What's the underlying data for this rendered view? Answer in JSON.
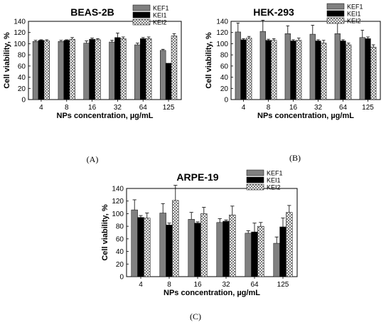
{
  "colors": {
    "KEF1": "#808080",
    "KEI1": "#000000",
    "KEI2": "crosshatch"
  },
  "chart_data": [
    {
      "type": "bar",
      "title": "BEAS-2B",
      "panel_label": "(A)",
      "xlabel": "NPs concentration, µg/mL",
      "ylabel": "Cell viability, %",
      "ylim": [
        0,
        140
      ],
      "yticks": [
        0,
        20,
        40,
        60,
        80,
        100,
        120,
        140
      ],
      "categories": [
        "4",
        "8",
        "16",
        "32",
        "64",
        "125"
      ],
      "legend_position": "top-right",
      "series": [
        {
          "name": "KEF1",
          "values": [
            104,
            104,
            101,
            103,
            98,
            88
          ],
          "errors": [
            2,
            2,
            4,
            3,
            3,
            2
          ]
        },
        {
          "name": "KEI1",
          "values": [
            106,
            106,
            108,
            111,
            109,
            65
          ],
          "errors": [
            1,
            1,
            2,
            8,
            2,
            0
          ]
        },
        {
          "name": "KEI2",
          "values": [
            105,
            108,
            107,
            109,
            109,
            114
          ],
          "errors": [
            2,
            3,
            2,
            3,
            3,
            4
          ]
        }
      ]
    },
    {
      "type": "bar",
      "title": "HEK-293",
      "panel_label": "(B)",
      "xlabel": "NPs concentration, µg/mL",
      "ylabel": "Cell viability, %",
      "ylim": [
        0,
        140
      ],
      "yticks": [
        0,
        20,
        40,
        60,
        80,
        100,
        120,
        140
      ],
      "categories": [
        "4",
        "8",
        "16",
        "32",
        "64",
        "125"
      ],
      "legend_position": "top-right",
      "series": [
        {
          "name": "KEF1",
          "values": [
            121,
            122,
            118,
            117,
            118,
            111
          ],
          "errors": [
            16,
            20,
            14,
            16,
            20,
            13
          ]
        },
        {
          "name": "KEI1",
          "values": [
            107,
            106,
            105,
            105,
            105,
            109
          ],
          "errors": [
            2,
            2,
            2,
            2,
            2,
            3
          ]
        },
        {
          "name": "KEI2",
          "values": [
            110,
            106,
            106,
            101,
            98,
            94
          ],
          "errors": [
            3,
            3,
            4,
            5,
            3,
            4
          ]
        }
      ]
    },
    {
      "type": "bar",
      "title": "ARPE-19",
      "panel_label": "(C)",
      "xlabel": "NPs concentration, µg/mL",
      "ylabel": "Cell viability, %",
      "ylim": [
        0,
        140
      ],
      "yticks": [
        0,
        20,
        40,
        60,
        80,
        100,
        120,
        140
      ],
      "categories": [
        "4",
        "8",
        "16",
        "32",
        "64",
        "125"
      ],
      "legend_position": "top-right",
      "series": [
        {
          "name": "KEF1",
          "values": [
            106,
            101,
            91,
            86,
            69,
            53
          ],
          "errors": [
            16,
            15,
            11,
            6,
            4,
            10
          ]
        },
        {
          "name": "KEI1",
          "values": [
            94,
            82,
            85,
            88,
            71,
            79
          ],
          "errors": [
            3,
            3,
            2,
            2,
            14,
            14
          ]
        },
        {
          "name": "KEI2",
          "values": [
            93,
            121,
            100,
            98,
            80,
            102
          ],
          "errors": [
            8,
            24,
            10,
            14,
            6,
            11
          ]
        }
      ]
    }
  ]
}
